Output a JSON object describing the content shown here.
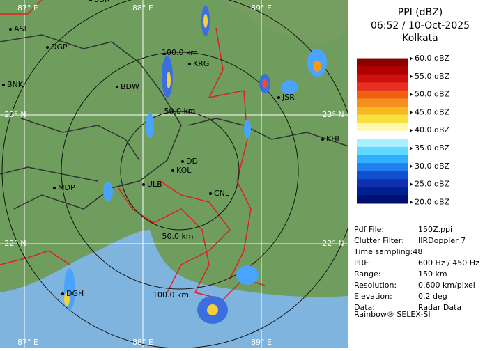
{
  "map": {
    "grid_labels": [
      "87° E",
      "88° E",
      "89° E",
      "87° E",
      "88° E",
      "89° E",
      "23° N",
      "23° N",
      "22° N",
      "22° N"
    ],
    "range_labels": [
      "100.0 km",
      "50.0 km",
      "50.0 km",
      "100.0 km"
    ],
    "places": [
      "SUR",
      "ASL",
      "DGP",
      "BNK",
      "BDW",
      "KRG",
      "JSR",
      "KHL",
      "MDP",
      "DD",
      "KOL",
      "ULB",
      "CNL",
      "DGH"
    ]
  },
  "legend": {
    "title": "PPI (dBZ)",
    "time": "06:52 / 10-Oct-2025",
    "station": "Kolkata",
    "scale": [
      "60.0 dBZ",
      "55.0 dBZ",
      "50.0 dBZ",
      "45.0 dBZ",
      "40.0 dBZ",
      "35.0 dBZ",
      "30.0 dBZ",
      "25.0 dBZ",
      "20.0 dBZ"
    ]
  },
  "info": {
    "rows": [
      [
        "Pdf File:",
        "150Z.ppi"
      ],
      [
        "Clutter Filter:",
        "IIRDoppler 7"
      ],
      [
        "Time sampling:48",
        ""
      ],
      [
        "PRF:",
        "600 Hz / 450 Hz"
      ],
      [
        "Range:",
        "150 km"
      ],
      [
        "Resolution:",
        "0.600 km/pixel"
      ],
      [
        "Elevation:",
        "0.2 deg"
      ],
      [
        "Data:",
        "Radar Data"
      ]
    ],
    "footer": "Rainbow® SELEX-SI"
  }
}
